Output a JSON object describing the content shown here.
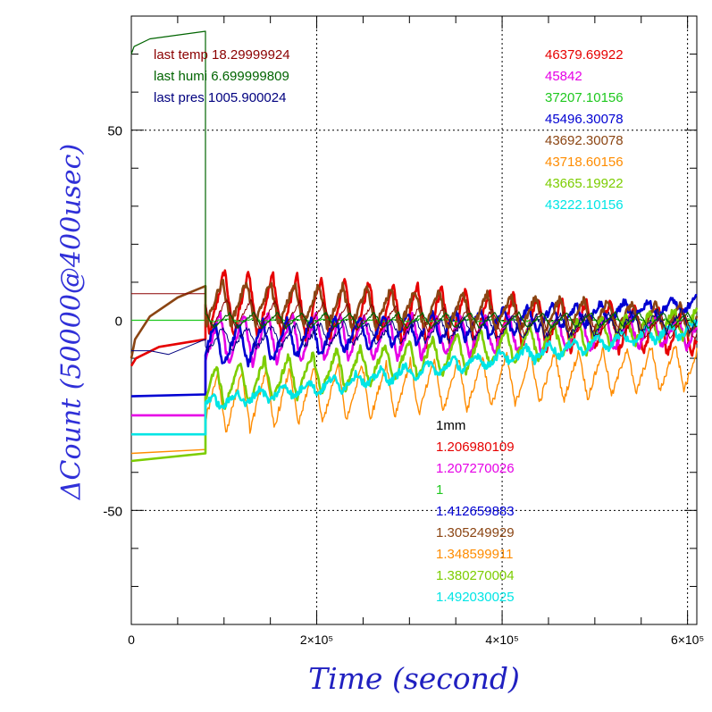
{
  "chart_data": {
    "type": "line",
    "title": "",
    "xlabel": "Time (second)",
    "ylabel": "ΔCount (50000@400usec)",
    "xlim": [
      0,
      610000
    ],
    "ylim": [
      -80,
      80
    ],
    "grid": true,
    "x_ticks": [
      {
        "value": 0,
        "label": "0"
      },
      {
        "value": 200000,
        "label": "2×10⁵"
      },
      {
        "value": 400000,
        "label": "4×10⁵"
      },
      {
        "value": 600000,
        "label": "6×10⁵"
      }
    ],
    "y_ticks": [
      {
        "value": 50,
        "label": "50"
      },
      {
        "value": 0,
        "label": "0"
      },
      {
        "value": -50,
        "label": "-50"
      }
    ],
    "env_labels": [
      {
        "text": "last temp 18.29999924",
        "color": "#8b0000"
      },
      {
        "text": "last humi 6.699999809",
        "color": "#006400"
      },
      {
        "text": "last pres 1005.900024",
        "color": "#00007f"
      }
    ],
    "legend_counts": [
      {
        "text": "46379.69922",
        "color": "#e60000"
      },
      {
        "text": "45842",
        "color": "#e600e6"
      },
      {
        "text": "37207.10156",
        "color": "#1ec81e"
      },
      {
        "text": "45496.30078",
        "color": "#0000d2"
      },
      {
        "text": "43692.30078",
        "color": "#8b4513"
      },
      {
        "text": "43718.60156",
        "color": "#ff8c00"
      },
      {
        "text": "43665.19922",
        "color": "#7ccd00"
      },
      {
        "text": "43222.10156",
        "color": "#00e5e5"
      }
    ],
    "legend_factors_title": {
      "text": "1mm",
      "color": "#000000"
    },
    "legend_factors": [
      {
        "text": "1.206980109",
        "color": "#e60000"
      },
      {
        "text": "1.207270026",
        "color": "#e600e6"
      },
      {
        "text": "1",
        "color": "#1ec81e"
      },
      {
        "text": "1.412659883",
        "color": "#0000d2"
      },
      {
        "text": "1.305249929",
        "color": "#8b4513"
      },
      {
        "text": "1.348599911",
        "color": "#ff8c00"
      },
      {
        "text": "1.380270004",
        "color": "#7ccd00"
      },
      {
        "text": "1.492030025",
        "color": "#00e5e5"
      }
    ],
    "series": [
      {
        "color": "#e60000",
        "width": 2.6,
        "pre": [
          [
            0,
            -12
          ],
          [
            5000,
            -10
          ],
          [
            30000,
            -7
          ],
          [
            80000,
            -5
          ]
        ],
        "osc": {
          "start": 80000,
          "end": 610000,
          "period": 26000,
          "c0": 5,
          "c1": -3,
          "a0": 9,
          "a1": 6,
          "noise": 1.2,
          "phase": 0.2
        }
      },
      {
        "color": "#e600e6",
        "width": 2.6,
        "pre": [
          [
            0,
            -25
          ],
          [
            80000,
            -25
          ]
        ],
        "osc": {
          "start": 80000,
          "end": 610000,
          "period": 26000,
          "c0": -5,
          "c1": -3,
          "a0": 7,
          "a1": 4,
          "noise": 1.0,
          "phase": 0.4
        }
      },
      {
        "color": "#1ec81e",
        "width": 1.2,
        "pre": [
          [
            0,
            0
          ],
          [
            80000,
            0
          ]
        ],
        "osc": {
          "start": 80000,
          "end": 610000,
          "period": 26000,
          "c0": 0,
          "c1": 0,
          "a0": 0.3,
          "a1": 0.3,
          "noise": 0.2,
          "phase": 0
        }
      },
      {
        "color": "#0000d2",
        "width": 2.6,
        "pre": [
          [
            0,
            -20
          ],
          [
            80000,
            -19.5
          ]
        ],
        "osc": {
          "start": 80000,
          "end": 610000,
          "period": 26000,
          "c0": -7,
          "c1": 4,
          "a0": 6,
          "a1": 2,
          "noise": 1.0,
          "phase": 0.6
        }
      },
      {
        "color": "#8b4513",
        "width": 2.6,
        "pre": [
          [
            0,
            -10
          ],
          [
            4000,
            -5
          ],
          [
            20000,
            1
          ],
          [
            50000,
            6
          ],
          [
            80000,
            9
          ]
        ],
        "osc": {
          "start": 80000,
          "end": 610000,
          "period": 26000,
          "c0": 5,
          "c1": 0,
          "a0": 6,
          "a1": 4,
          "noise": 1.0,
          "phase": 0.3
        }
      },
      {
        "color": "#ff8c00",
        "width": 1.4,
        "pre": [
          [
            0,
            -35
          ],
          [
            80000,
            -34
          ]
        ],
        "osc": {
          "start": 80000,
          "end": 610000,
          "period": 26000,
          "c0": -22,
          "c1": -12,
          "a0": 8,
          "a1": 6,
          "noise": 1.0,
          "phase": 0.5
        }
      },
      {
        "color": "#7ccd00",
        "width": 2.6,
        "pre": [
          [
            0,
            -37
          ],
          [
            80000,
            -35
          ]
        ],
        "osc": {
          "start": 80000,
          "end": 610000,
          "period": 26000,
          "c0": -18,
          "c1": 0,
          "a0": 6,
          "a1": 4,
          "noise": 1.0,
          "phase": 0.55
        }
      },
      {
        "color": "#00e5e5",
        "width": 2.6,
        "pre": [
          [
            0,
            -30
          ],
          [
            80000,
            -30
          ]
        ],
        "osc": {
          "start": 80000,
          "end": 610000,
          "period": 26000,
          "c0": -22,
          "c1": -2,
          "a0": 2,
          "a1": 2,
          "noise": 1.0,
          "phase": 0.7
        }
      },
      {
        "color": "#8b0000",
        "width": 1.0,
        "pre": [
          [
            0,
            7
          ],
          [
            80000,
            7
          ]
        ],
        "osc": {
          "start": 80000,
          "end": 610000,
          "period": 26000,
          "c0": 2,
          "c1": -2,
          "a0": 4,
          "a1": 3,
          "noise": 0.5,
          "phase": 0.1
        }
      },
      {
        "color": "#00007f",
        "width": 1.0,
        "pre": [
          [
            0,
            -8
          ],
          [
            20000,
            -8
          ],
          [
            40000,
            -9
          ],
          [
            80000,
            -5
          ]
        ],
        "osc": {
          "start": 80000,
          "end": 610000,
          "period": 26000,
          "c0": -5,
          "c1": 0,
          "a0": 3,
          "a1": 3,
          "noise": 0.8,
          "phase": 0.25
        }
      },
      {
        "color": "#006400",
        "width": 1.2,
        "pre": [
          [
            0,
            70
          ],
          [
            3000,
            72
          ],
          [
            20000,
            74
          ],
          [
            80000,
            76
          ]
        ],
        "osc": {
          "start": 80000,
          "end": 610000,
          "period": 26000,
          "c0": 0,
          "c1": 0,
          "a0": 2,
          "a1": 2,
          "noise": 0.3,
          "phase": 0
        }
      }
    ]
  }
}
